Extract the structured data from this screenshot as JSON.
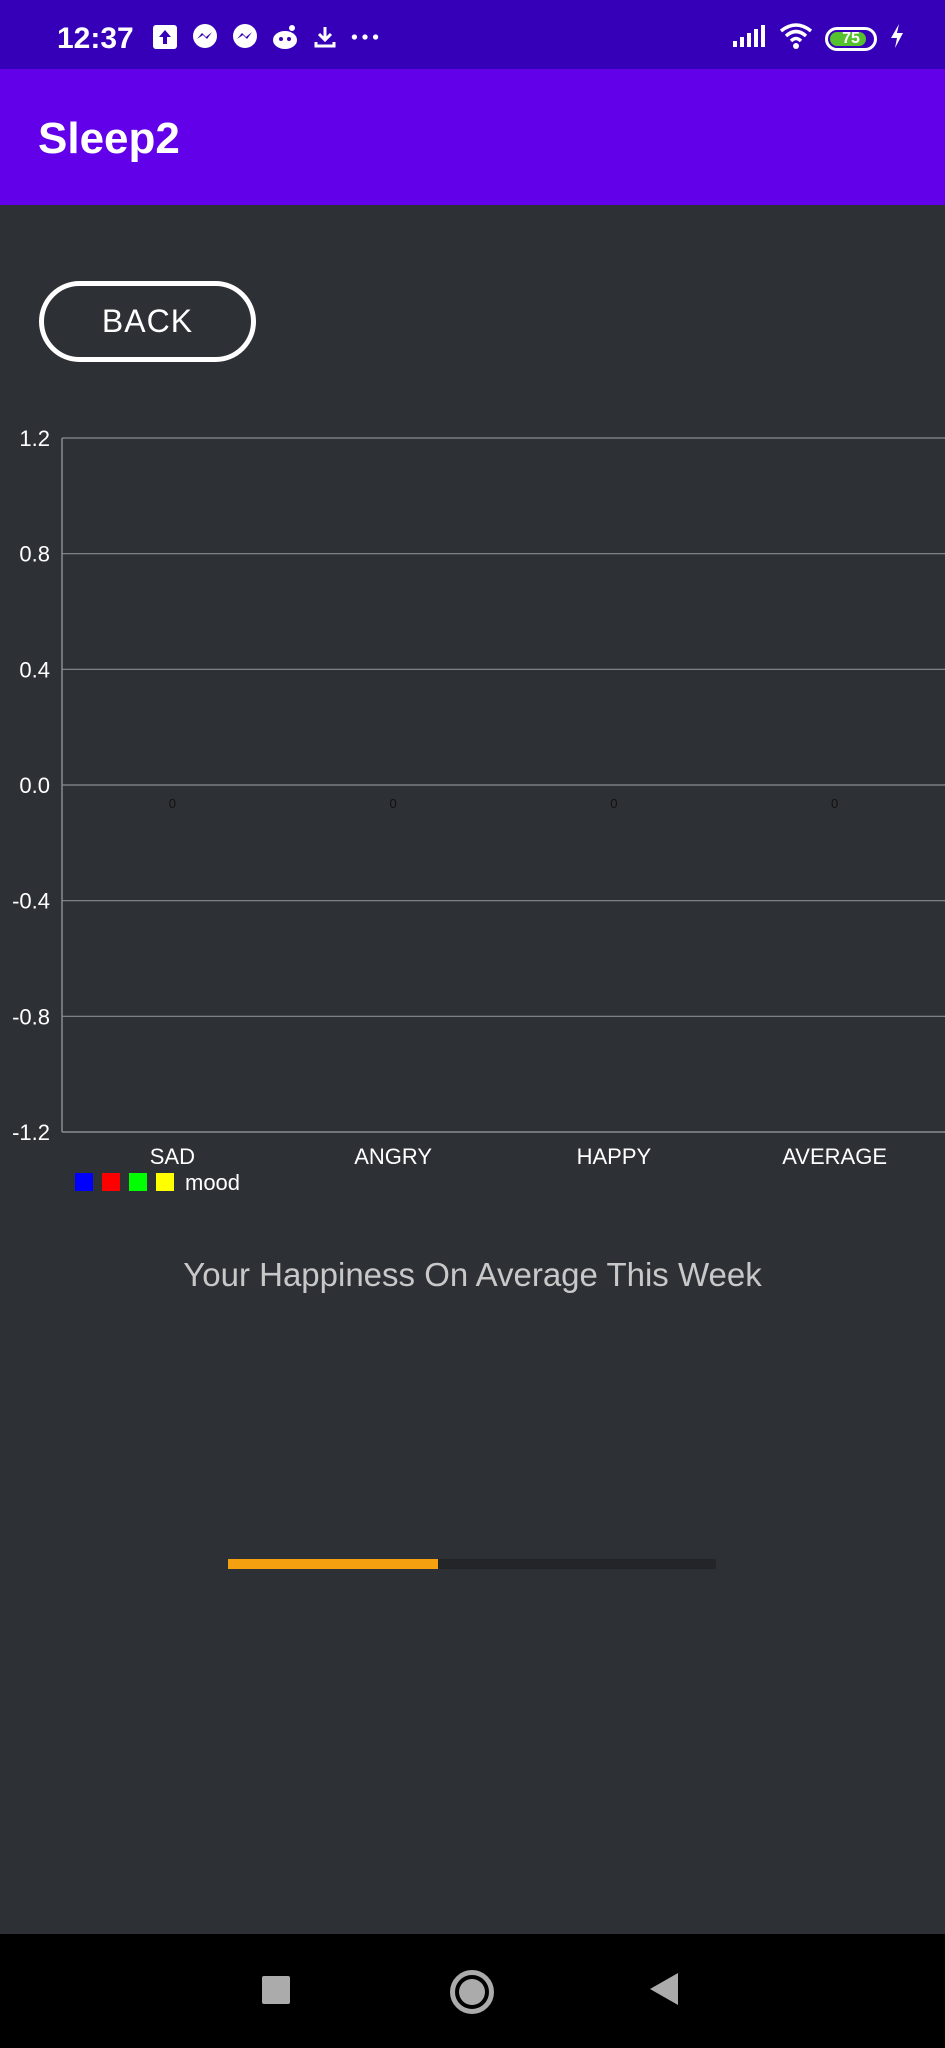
{
  "status_bar": {
    "time": "12:37",
    "left_icons": [
      "upload-icon",
      "messenger-icon",
      "messenger-icon",
      "reddit-icon",
      "download-icon",
      "more-dots-icon"
    ],
    "right_icons": [
      "signal-icon",
      "wifi-icon",
      "battery-icon",
      "charging-icon"
    ],
    "battery": "75"
  },
  "app_bar": {
    "title": "Sleep2"
  },
  "back_button": {
    "label": "BACK"
  },
  "chart_data": {
    "type": "bar",
    "categories": [
      "SAD",
      "ANGRY",
      "HAPPY",
      "AVERAGE"
    ],
    "series": [
      {
        "name": "mood",
        "values": [
          0,
          0,
          0,
          0
        ]
      }
    ],
    "value_labels": [
      "0",
      "0",
      "0",
      "0"
    ],
    "y_ticks": [
      "1.2",
      "0.8",
      "0.4",
      "0.0",
      "-0.4",
      "-0.8",
      "-1.2"
    ],
    "ylim": [
      -1.2,
      1.2
    ],
    "grid": true,
    "legend": {
      "label": "mood",
      "colors": [
        "#0000ff",
        "#ff0000",
        "#00ff00",
        "#ffff00"
      ],
      "placement": "bottom-left"
    }
  },
  "happiness": {
    "label": "Your Happiness On Average This Week",
    "progress_fraction": 0.43,
    "progress_color": "#f5a00f"
  },
  "nav_bar": {
    "icons": [
      "recents-icon",
      "home-icon",
      "back-icon"
    ]
  }
}
